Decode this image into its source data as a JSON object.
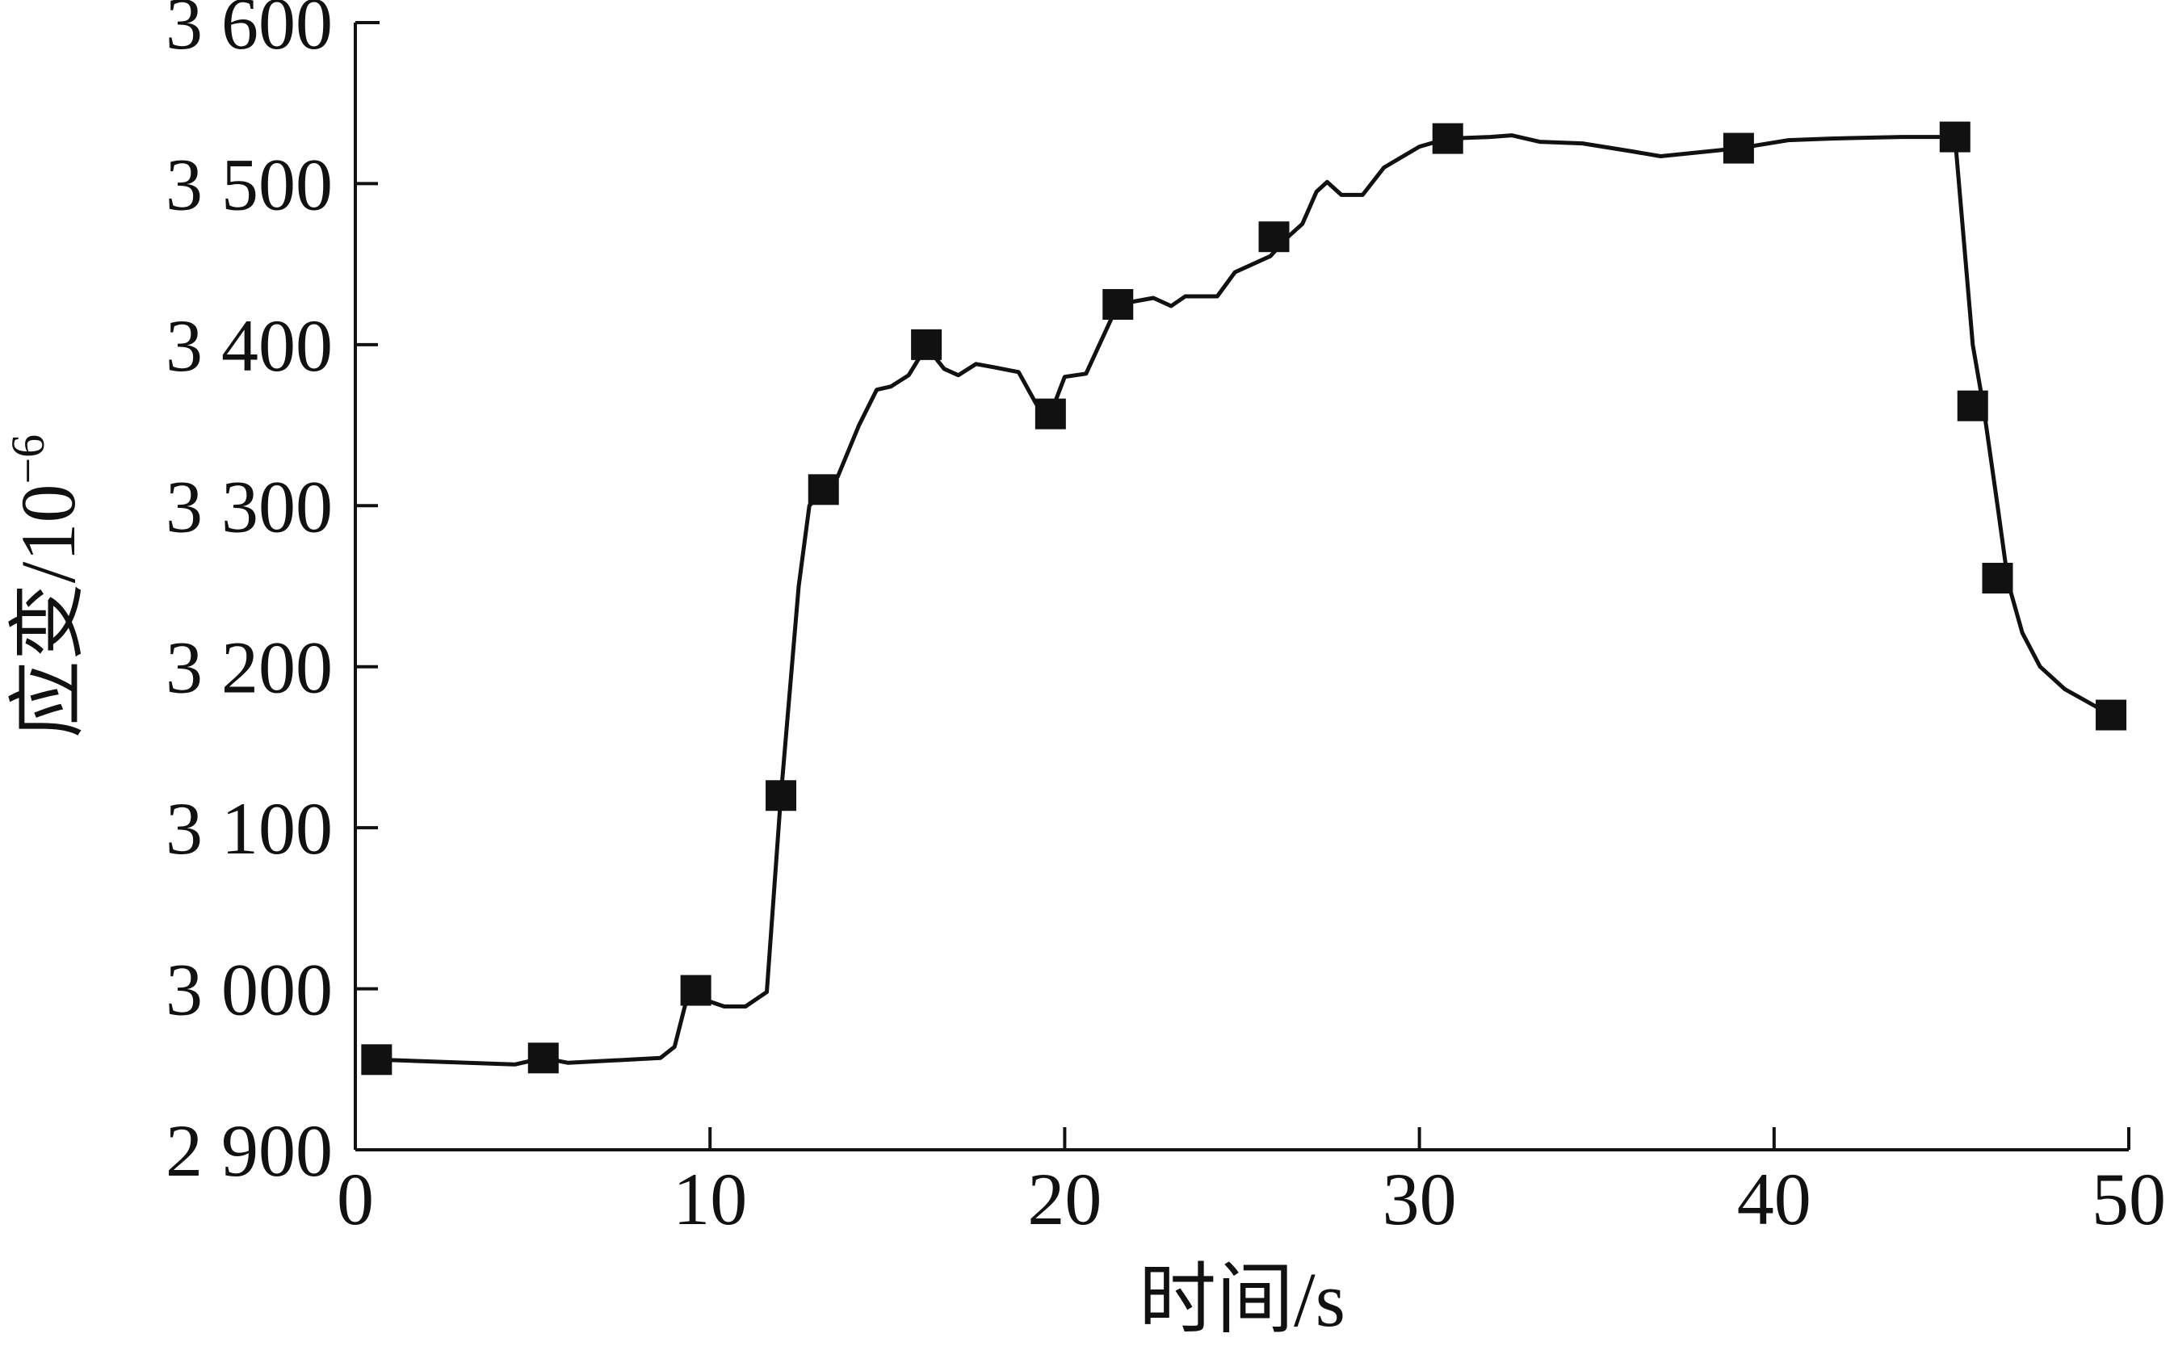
{
  "chart_data": {
    "type": "line",
    "title": "",
    "xlabel": "时间/s",
    "ylabel": {
      "base": "应变/10",
      "exponent": "−6"
    },
    "xlim": [
      0,
      50
    ],
    "ylim": [
      2900,
      3600
    ],
    "x_ticks": [
      0,
      10,
      20,
      30,
      40,
      50
    ],
    "x_tick_labels": [
      "0",
      "10",
      "20",
      "30",
      "40",
      "50"
    ],
    "y_ticks": [
      2900,
      3000,
      3100,
      3200,
      3300,
      3400,
      3500,
      3600
    ],
    "y_tick_labels": [
      "2 900",
      "3 000",
      "3 100",
      "3 200",
      "3 300",
      "3 400",
      "3 500",
      "3 600"
    ],
    "grid": false,
    "series": [
      {
        "line_color": "#111111",
        "marker": "square",
        "line": {
          "x": [
            0.6,
            4.5,
            5.3,
            6.0,
            8.6,
            9.0,
            9.3,
            9.6,
            10.0,
            10.4,
            11.0,
            11.6,
            12.0,
            12.5,
            12.8,
            13.2,
            13.6,
            14.2,
            14.7,
            15.1,
            15.6,
            16.1,
            16.6,
            17.0,
            17.5,
            18.0,
            18.7,
            19.2,
            19.6,
            20.0,
            20.6,
            21.5,
            22.0,
            22.5,
            23.0,
            23.4,
            23.9,
            24.3,
            24.8,
            25.8,
            26.3,
            26.7,
            27.1,
            27.4,
            27.8,
            28.4,
            29.0,
            30.0,
            30.8,
            32.0,
            32.6,
            33.4,
            34.6,
            36.0,
            36.8,
            39.0,
            40.4,
            41.6,
            43.6,
            45.1,
            45.6,
            45.9,
            46.3,
            46.6,
            47.0,
            47.5,
            48.2,
            49.5
          ],
          "y": [
            2956,
            2953,
            2957,
            2954,
            2957,
            2964,
            2990,
            2999,
            2992,
            2989,
            2989,
            2998,
            3120,
            3250,
            3300,
            3310,
            3318,
            3350,
            3372,
            3374,
            3381,
            3399,
            3385,
            3381,
            3388,
            3386,
            3383,
            3363,
            3357,
            3380,
            3382,
            3425,
            3427,
            3429,
            3424,
            3430,
            3430,
            3430,
            3445,
            3455,
            3467,
            3475,
            3495,
            3501,
            3493,
            3493,
            3510,
            3523,
            3528,
            3529,
            3530,
            3526,
            3525,
            3520,
            3517,
            3522,
            3527,
            3528,
            3529,
            3529,
            3400,
            3362,
            3300,
            3252,
            3221,
            3200,
            3186,
            3170
          ]
        },
        "markers": {
          "x": [
            0.6,
            5.3,
            9.6,
            12.0,
            13.2,
            16.1,
            19.6,
            21.5,
            25.9,
            30.8,
            39.0,
            45.1,
            45.6,
            46.3,
            49.5
          ],
          "y": [
            2956,
            2957,
            2999,
            3120,
            3310,
            3400,
            3357,
            3425,
            3467,
            3528,
            3522,
            3529,
            3362,
            3255,
            3170
          ]
        }
      }
    ]
  }
}
